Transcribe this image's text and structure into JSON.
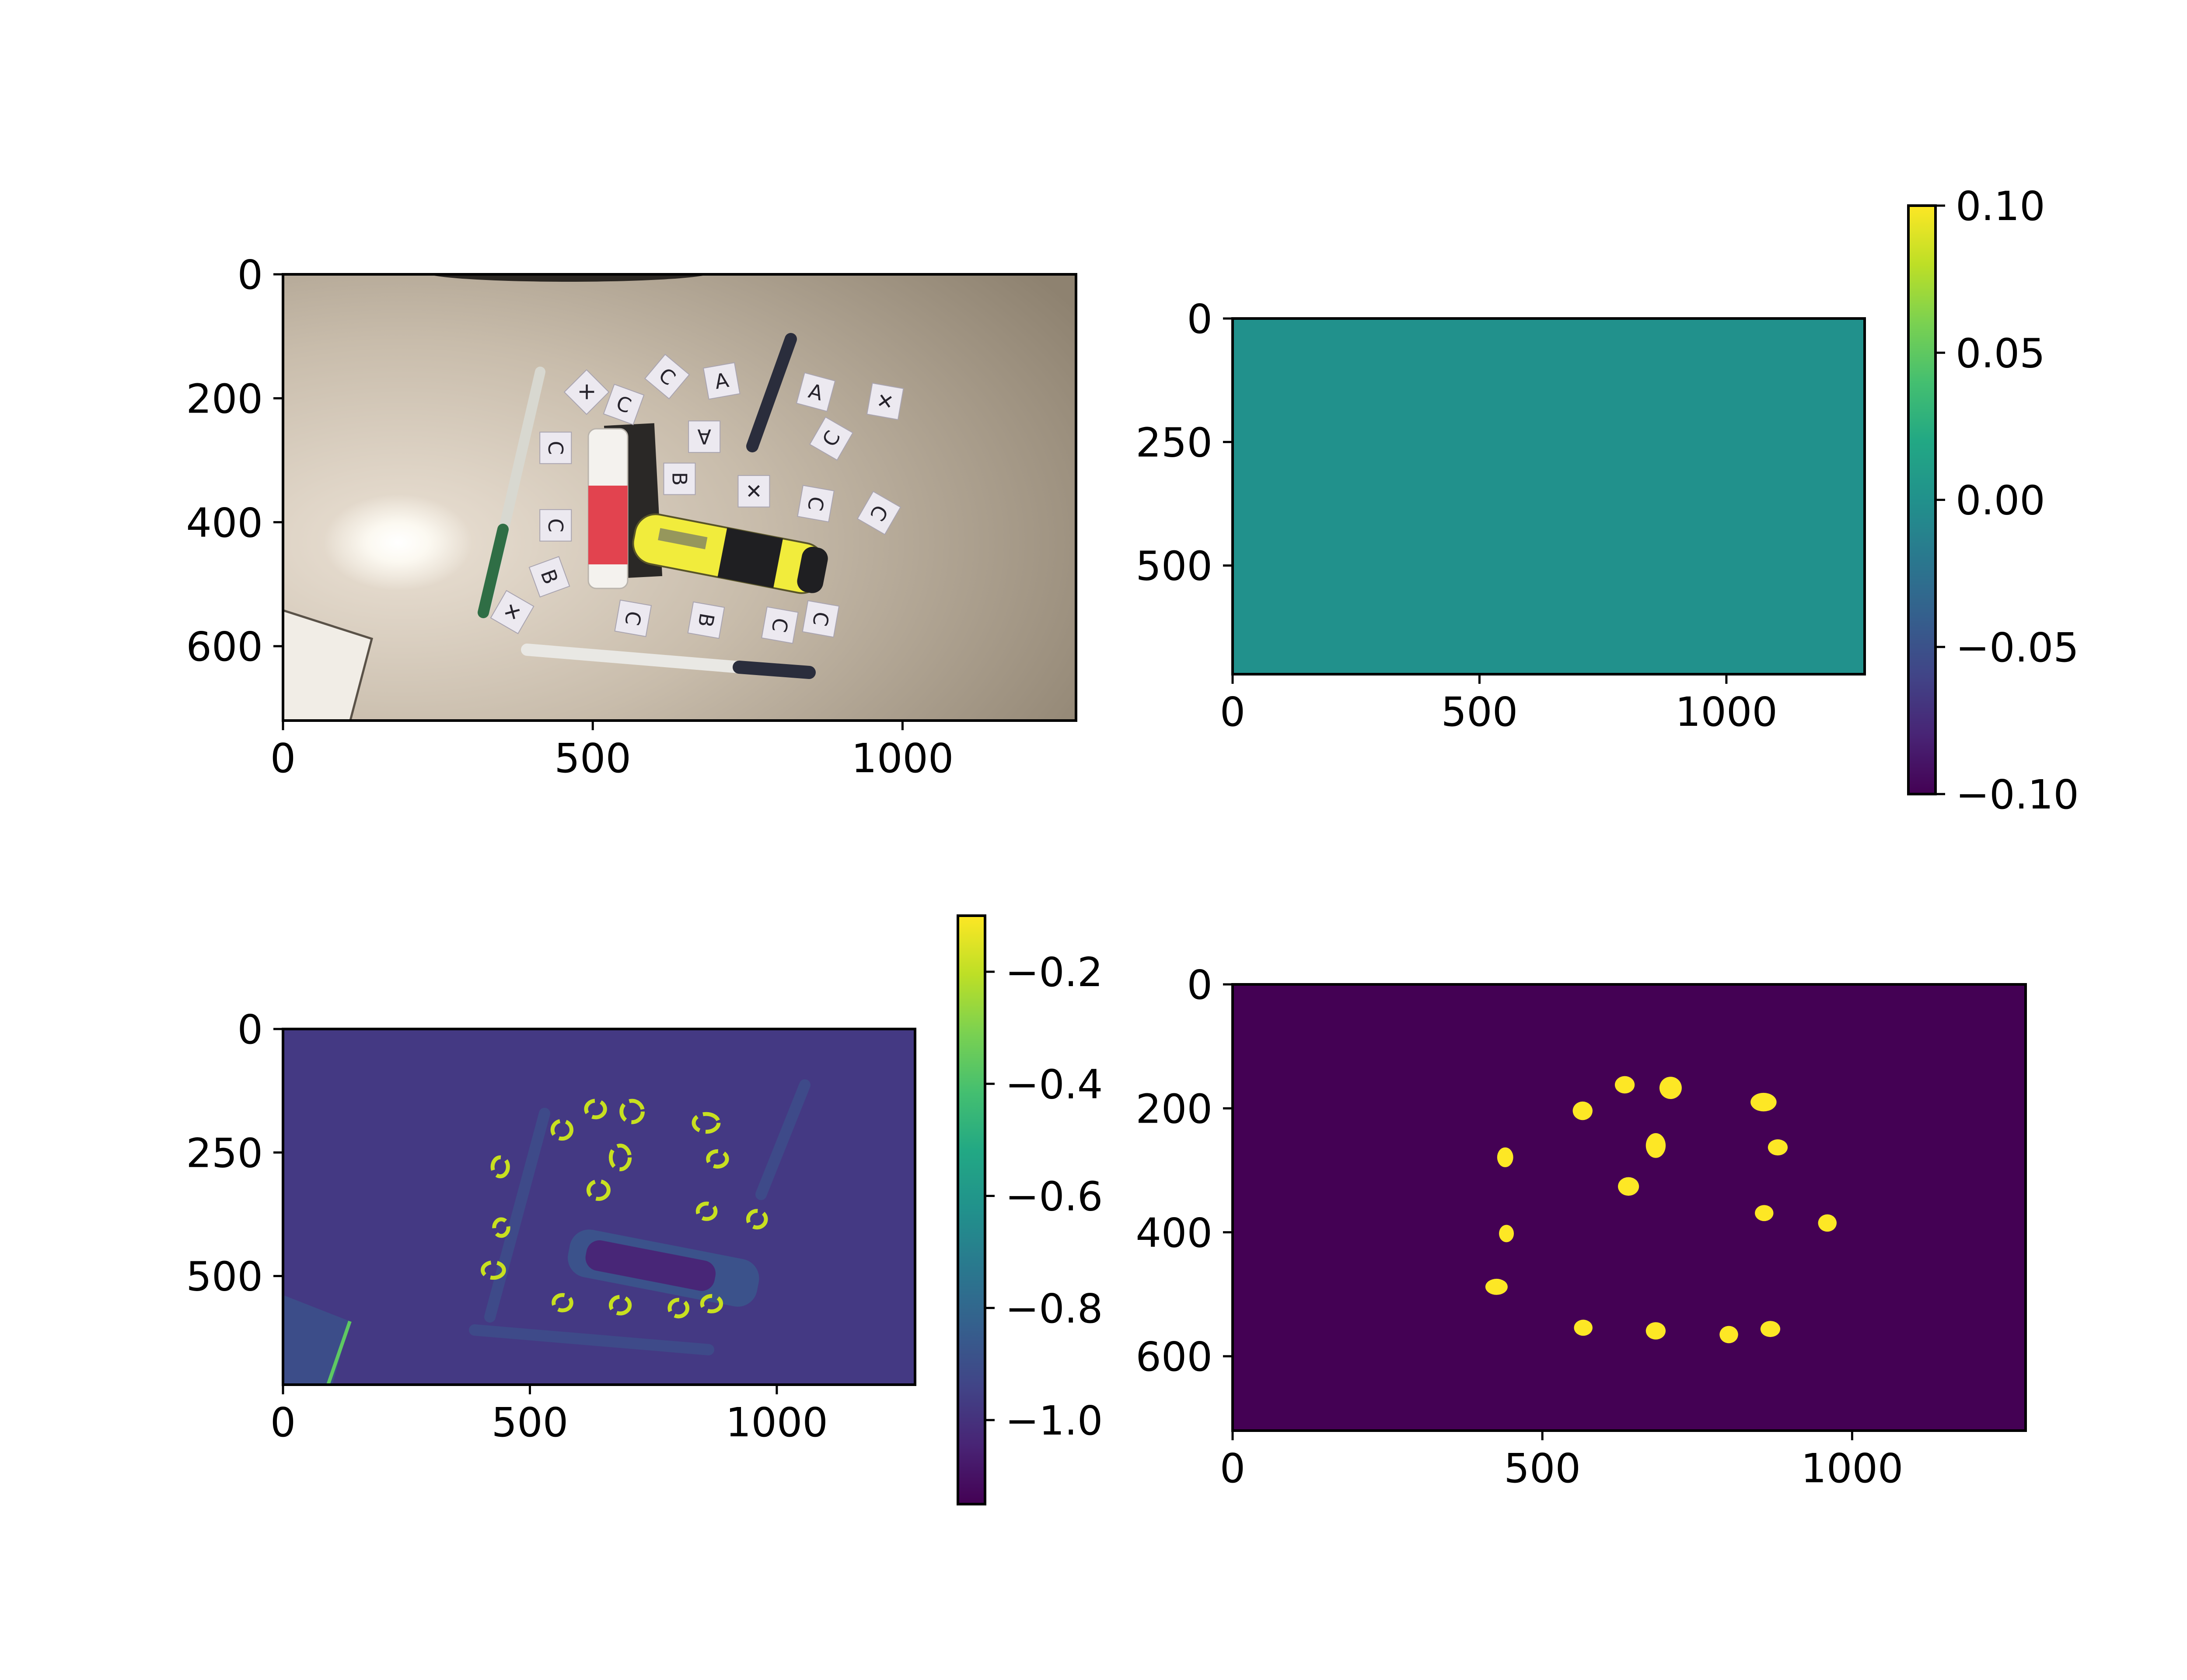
{
  "colors": {
    "viridis_low": "#440154",
    "viridis_mid": "#21918c",
    "viridis_high": "#fde725",
    "axis": "#000000",
    "background": "#ffffff"
  },
  "chart_data": [
    {
      "type": "image",
      "content": "photo",
      "x_ticks": [
        "0",
        "500",
        "1000"
      ],
      "y_ticks": [
        "0",
        "200",
        "400",
        "600"
      ],
      "x_tick_values": [
        0,
        500,
        1000
      ],
      "y_tick_values": [
        0,
        200,
        400,
        600
      ],
      "xlim": [
        0,
        1280
      ],
      "ylim": [
        720,
        0
      ],
      "grid": false,
      "colorbar": false
    },
    {
      "type": "heatmap",
      "content": "uniform",
      "cmap": "viridis",
      "uniform_value": 0.0,
      "x_ticks": [
        "0",
        "500",
        "1000"
      ],
      "y_ticks": [
        "0",
        "250",
        "500"
      ],
      "x_tick_values": [
        0,
        500,
        1000
      ],
      "y_tick_values": [
        0,
        250,
        500
      ],
      "xlim": [
        0,
        1280
      ],
      "ylim": [
        720,
        0
      ],
      "colorbar": {
        "range": [
          -0.1,
          0.1
        ],
        "ticks": [
          "0.10",
          "0.05",
          "0.00",
          "−0.05",
          "−0.10"
        ],
        "tick_values": [
          0.1,
          0.05,
          0.0,
          -0.05,
          -0.1
        ]
      },
      "grid": false
    },
    {
      "type": "heatmap",
      "content": "grayscale-response",
      "cmap": "viridis",
      "x_ticks": [
        "0",
        "500",
        "1000"
      ],
      "y_ticks": [
        "0",
        "250",
        "500"
      ],
      "x_tick_values": [
        0,
        500,
        1000
      ],
      "y_tick_values": [
        0,
        250,
        500
      ],
      "xlim": [
        0,
        1280
      ],
      "ylim": [
        720,
        0
      ],
      "colorbar": {
        "range": [
          -1.15,
          -0.1
        ],
        "ticks": [
          "−0.2",
          "−0.4",
          "−0.6",
          "−0.8",
          "−1.0"
        ],
        "tick_values": [
          -0.2,
          -0.4,
          -0.6,
          -0.8,
          -1.0
        ]
      },
      "grid": false
    },
    {
      "type": "heatmap",
      "content": "binary-mask",
      "cmap": "viridis",
      "x_ticks": [
        "0",
        "500",
        "1000"
      ],
      "y_ticks": [
        "0",
        "200",
        "400",
        "600"
      ],
      "x_tick_values": [
        0,
        500,
        1000
      ],
      "y_tick_values": [
        0,
        200,
        400,
        600
      ],
      "xlim": [
        0,
        1280
      ],
      "ylim": [
        720,
        0
      ],
      "blobs": [
        {
          "x": 633,
          "y": 162,
          "rx": 16,
          "ry": 14
        },
        {
          "x": 707,
          "y": 167,
          "rx": 18,
          "ry": 18
        },
        {
          "x": 565,
          "y": 204,
          "rx": 16,
          "ry": 15
        },
        {
          "x": 857,
          "y": 190,
          "rx": 21,
          "ry": 15
        },
        {
          "x": 683,
          "y": 260,
          "rx": 16,
          "ry": 20
        },
        {
          "x": 440,
          "y": 279,
          "rx": 13,
          "ry": 16
        },
        {
          "x": 880,
          "y": 263,
          "rx": 16,
          "ry": 13
        },
        {
          "x": 639,
          "y": 326,
          "rx": 17,
          "ry": 15
        },
        {
          "x": 858,
          "y": 369,
          "rx": 15,
          "ry": 13
        },
        {
          "x": 960,
          "y": 385,
          "rx": 15,
          "ry": 14
        },
        {
          "x": 442,
          "y": 402,
          "rx": 12,
          "ry": 14
        },
        {
          "x": 426,
          "y": 488,
          "rx": 18,
          "ry": 13
        },
        {
          "x": 566,
          "y": 554,
          "rx": 15,
          "ry": 13
        },
        {
          "x": 683,
          "y": 559,
          "rx": 16,
          "ry": 14
        },
        {
          "x": 801,
          "y": 565,
          "rx": 15,
          "ry": 14
        },
        {
          "x": 868,
          "y": 556,
          "rx": 16,
          "ry": 13
        }
      ],
      "grid": false,
      "colorbar": false
    }
  ],
  "photo_letters": [
    {
      "t": "✕",
      "x": 490,
      "y": 190,
      "r": 45
    },
    {
      "t": "C",
      "x": 550,
      "y": 210,
      "r": 20
    },
    {
      "t": "C",
      "x": 620,
      "y": 165,
      "r": 40
    },
    {
      "t": "A",
      "x": 708,
      "y": 172,
      "r": -10
    },
    {
      "t": "A",
      "x": 860,
      "y": 190,
      "r": 15
    },
    {
      "t": "✕",
      "x": 972,
      "y": 205,
      "r": 10
    },
    {
      "t": "C",
      "x": 440,
      "y": 280,
      "r": 90
    },
    {
      "t": "A",
      "x": 680,
      "y": 262,
      "r": 180
    },
    {
      "t": "C",
      "x": 885,
      "y": 265,
      "r": -60
    },
    {
      "t": "B",
      "x": 640,
      "y": 330,
      "r": 90
    },
    {
      "t": "✕",
      "x": 760,
      "y": 350,
      "r": 0
    },
    {
      "t": "C",
      "x": 860,
      "y": 370,
      "r": 100
    },
    {
      "t": "C",
      "x": 962,
      "y": 385,
      "r": 120
    },
    {
      "t": "C",
      "x": 440,
      "y": 405,
      "r": 90
    },
    {
      "t": "B",
      "x": 430,
      "y": 488,
      "r": 70
    },
    {
      "t": "✕",
      "x": 370,
      "y": 545,
      "r": 30
    },
    {
      "t": "C",
      "x": 565,
      "y": 555,
      "r": 100
    },
    {
      "t": "B",
      "x": 683,
      "y": 558,
      "r": 100
    },
    {
      "t": "C",
      "x": 802,
      "y": 566,
      "r": 100
    },
    {
      "t": "C",
      "x": 868,
      "y": 556,
      "r": 100
    }
  ]
}
